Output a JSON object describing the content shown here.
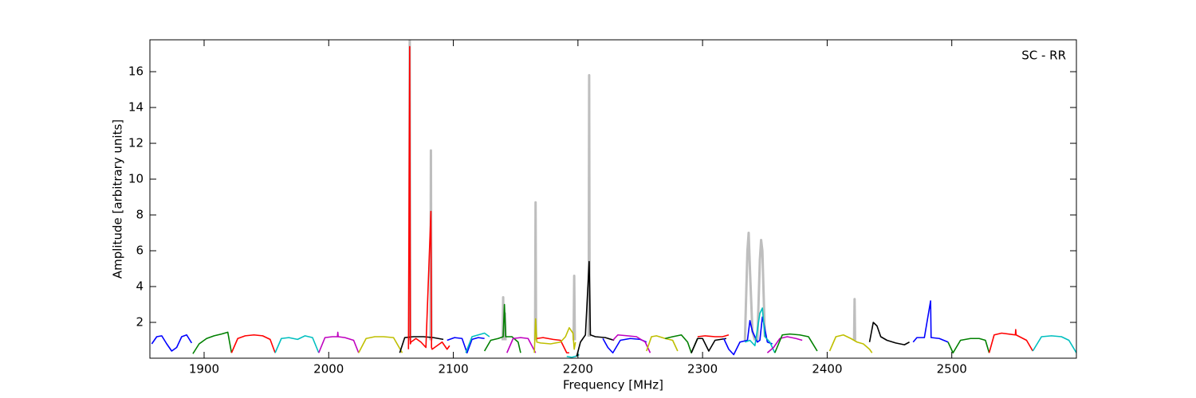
{
  "chart_data": {
    "type": "line",
    "annotation": "SC - RR",
    "xlabel": "Frequency [MHz]",
    "ylabel": "Amplitude [arbitrary units]",
    "xlim": [
      1856.5,
      2600
    ],
    "ylim": [
      0,
      17.78
    ],
    "xticks": [
      1900,
      2000,
      2100,
      2200,
      2300,
      2400,
      2500
    ],
    "yticks": [
      2,
      4,
      6,
      8,
      10,
      12,
      14,
      16
    ],
    "series": [
      {
        "color": "#bebebe",
        "x": [
          2064.6,
          2065,
          2065.4,
          2065.5,
          2081.6,
          2082,
          2082.4,
          2082.5,
          2139.6,
          2140,
          2140.4,
          2140.5,
          2141.1,
          2141.5,
          2141.9,
          2142,
          2165.6,
          2166,
          2166.4,
          2166.5,
          2196.5,
          2197,
          2197.5,
          2197.6,
          2208.6,
          2209,
          2209.4,
          2209.5,
          2334,
          2336,
          2337,
          2338,
          2340,
          2342,
          2343,
          2344,
          2346,
          2347,
          2348,
          2350,
          2351,
          2421.6,
          2422,
          2422.4
        ],
        "values": [
          1,
          17.8,
          1,
          null,
          1,
          11.6,
          1,
          null,
          1,
          3.4,
          1,
          null,
          1,
          2.5,
          1,
          null,
          1,
          8.7,
          1,
          null,
          1,
          4.6,
          1,
          null,
          1.2,
          15.8,
          1.2,
          null,
          1,
          6.0,
          7.0,
          5.0,
          1.5,
          1.0,
          null,
          1,
          5.5,
          6.6,
          6.0,
          1.2,
          null,
          1,
          3.3,
          1
        ]
      },
      {
        "color": "#0000ff",
        "x": [
          1858,
          1862,
          1866,
          1870,
          1874,
          1878,
          1882,
          1886,
          1890
        ],
        "values": [
          0.8,
          1.2,
          1.25,
          0.8,
          0.4,
          0.6,
          1.2,
          1.3,
          0.85
        ]
      },
      {
        "color": "#008000",
        "x": [
          1891,
          1896,
          1902,
          1908,
          1914,
          1919,
          1922
        ],
        "values": [
          0.25,
          0.8,
          1.1,
          1.25,
          1.35,
          1.45,
          0.3
        ]
      },
      {
        "color": "#ff0000",
        "x": [
          1922,
          1927,
          1933,
          1940,
          1947,
          1953,
          1957
        ],
        "values": [
          0.3,
          1.1,
          1.25,
          1.3,
          1.25,
          1.05,
          0.3
        ]
      },
      {
        "color": "#00bfbf",
        "x": [
          1957,
          1962,
          1968,
          1975,
          1981,
          1987,
          1992
        ],
        "values": [
          0.3,
          1.1,
          1.15,
          1.05,
          1.25,
          1.15,
          0.3
        ]
      },
      {
        "color": "#bf00bf",
        "x": [
          1992,
          1997,
          2003,
          2007,
          2007.3,
          2007.6,
          2013,
          2020,
          2024
        ],
        "values": [
          0.3,
          1.15,
          1.2,
          1.2,
          1.45,
          1.2,
          1.15,
          1.0,
          0.3
        ]
      },
      {
        "color": "#bfbf00",
        "x": [
          2024,
          2030,
          2037,
          2044,
          2052,
          2059
        ],
        "values": [
          0.3,
          1.1,
          1.2,
          1.2,
          1.15,
          0.3
        ]
      },
      {
        "color": "#000000",
        "x": [
          2057,
          2061,
          2068,
          2076,
          2084,
          2092
        ],
        "values": [
          0.3,
          1.15,
          1.2,
          1.2,
          1.15,
          1.05
        ]
      },
      {
        "color": "#ff0000",
        "x": [
          2064,
          2065,
          2065.5,
          2066,
          2070,
          2074,
          2078,
          2082,
          2082.5,
          2083,
          2087,
          2091,
          2095,
          2097
        ],
        "values": [
          0.5,
          17.4,
          0.8,
          0.9,
          1.1,
          0.9,
          0.6,
          8.2,
          0.6,
          0.5,
          0.7,
          0.9,
          0.5,
          0.7
        ]
      },
      {
        "color": "#0000ff",
        "x": [
          2095,
          2101,
          2107,
          2111,
          2115,
          2120,
          2125
        ],
        "values": [
          1.0,
          1.15,
          1.1,
          0.3,
          1.05,
          1.15,
          1.1
        ]
      },
      {
        "color": "#00bfbf",
        "x": [
          2110,
          2115,
          2120,
          2125,
          2129
        ],
        "values": [
          0.3,
          1.2,
          1.3,
          1.4,
          1.2
        ]
      },
      {
        "color": "#008000",
        "x": [
          2125,
          2130,
          2136,
          2140,
          2141,
          2142,
          2147,
          2152,
          2154
        ],
        "values": [
          0.4,
          1.0,
          1.1,
          1.2,
          3.0,
          1.2,
          1.2,
          0.9,
          0.3
        ]
      },
      {
        "color": "#bf00bf",
        "x": [
          2143,
          2148,
          2154,
          2160,
          2166
        ],
        "values": [
          0.3,
          1.1,
          1.15,
          1.1,
          0.3
        ]
      },
      {
        "color": "#bfbf00",
        "x": [
          2165,
          2166,
          2167,
          2170,
          2178,
          2186
        ],
        "values": [
          0.3,
          2.2,
          0.9,
          0.85,
          0.8,
          0.9
        ]
      },
      {
        "color": "#ff0000",
        "x": [
          2167,
          2172,
          2180,
          2186,
          2191,
          2193
        ],
        "values": [
          1.1,
          1.15,
          1.05,
          1.0,
          0.3,
          0.3
        ]
      },
      {
        "color": "#bfbf00",
        "x": [
          2186,
          2190,
          2193,
          2196,
          2197,
          2198
        ],
        "values": [
          0.9,
          1.2,
          1.7,
          1.4,
          0.5,
          0.9
        ]
      },
      {
        "color": "#00bfbf",
        "x": [
          2191,
          2195,
          2198,
          2201
        ],
        "values": [
          0.1,
          0.05,
          0.1,
          0.2
        ]
      },
      {
        "color": "#000000",
        "x": [
          2199,
          2202,
          2206,
          2209,
          2210,
          2214,
          2222,
          2229
        ],
        "values": [
          0.1,
          0.9,
          1.3,
          5.4,
          1.3,
          1.2,
          1.15,
          1.0
        ]
      },
      {
        "color": "#0000ff",
        "x": [
          2220,
          2224,
          2228,
          2234,
          2242,
          2250,
          2255
        ],
        "values": [
          1.1,
          0.6,
          0.3,
          1.0,
          1.1,
          1.05,
          0.9
        ]
      },
      {
        "color": "#bf00bf",
        "x": [
          2228,
          2232,
          2240,
          2247,
          2254,
          2258
        ],
        "values": [
          1.0,
          1.3,
          1.25,
          1.2,
          0.9,
          0.3
        ]
      },
      {
        "color": "#bfbf00",
        "x": [
          2255,
          2259,
          2263,
          2270,
          2276,
          2280
        ],
        "values": [
          0.4,
          1.2,
          1.25,
          1.1,
          1.0,
          0.4
        ]
      },
      {
        "color": "#008000",
        "x": [
          2270,
          2276,
          2283,
          2288,
          2291,
          2296
        ],
        "values": [
          1.1,
          1.2,
          1.3,
          0.9,
          0.3,
          1.1
        ]
      },
      {
        "color": "#000000",
        "x": [
          2291,
          2296,
          2300,
          2305,
          2310,
          2319
        ],
        "values": [
          0.3,
          1.1,
          1.1,
          0.4,
          1.0,
          1.1
        ]
      },
      {
        "color": "#ff0000",
        "x": [
          2296,
          2302,
          2310,
          2316,
          2321
        ],
        "values": [
          1.2,
          1.25,
          1.2,
          1.2,
          1.3
        ]
      },
      {
        "color": "#0000ff",
        "x": [
          2317,
          2321,
          2325,
          2330,
          2336,
          2338,
          2340,
          2344,
          2346,
          2348,
          2349,
          2352,
          2356
        ],
        "values": [
          1.1,
          0.5,
          0.2,
          0.9,
          1.0,
          2.1,
          1.5,
          0.9,
          1.0,
          2.3,
          2.0,
          0.9,
          0.8
        ]
      },
      {
        "color": "#00bfbf",
        "x": [
          2334,
          2338,
          2342,
          2346,
          2348,
          2350,
          2354,
          2358
        ],
        "values": [
          0.9,
          1.0,
          0.7,
          2.5,
          2.8,
          1.2,
          0.9,
          0.3
        ]
      },
      {
        "color": "#bf00bf",
        "x": [
          2352,
          2357,
          2362,
          2368,
          2375,
          2380
        ],
        "values": [
          0.3,
          0.6,
          1.1,
          1.2,
          1.1,
          1.0
        ]
      },
      {
        "color": "#008000",
        "x": [
          2358,
          2364,
          2370,
          2378,
          2385,
          2392
        ],
        "values": [
          0.3,
          1.3,
          1.35,
          1.3,
          1.2,
          0.4
        ]
      },
      {
        "color": "#bfbf00",
        "x": [
          2402,
          2407,
          2413,
          2419,
          2424,
          2429,
          2434,
          2436
        ],
        "values": [
          0.4,
          1.2,
          1.3,
          1.1,
          0.9,
          0.8,
          0.5,
          0.3
        ]
      },
      {
        "color": "#000000",
        "x": [
          2434,
          2437,
          2440,
          2443,
          2448,
          2455,
          2462,
          2466
        ],
        "values": [
          0.9,
          2.0,
          1.8,
          1.2,
          1.0,
          0.85,
          0.75,
          0.9
        ]
      },
      {
        "color": "#0000ff",
        "x": [
          2469,
          2472,
          2478,
          2483,
          2483.4,
          2483.8,
          2490,
          2497
        ],
        "values": [
          0.9,
          1.15,
          1.15,
          3.2,
          1.15,
          1.15,
          1.1,
          0.9
        ]
      },
      {
        "color": "#008000",
        "x": [
          2497,
          2501,
          2507,
          2515,
          2522,
          2527,
          2530
        ],
        "values": [
          0.9,
          0.3,
          1.0,
          1.1,
          1.1,
          1.0,
          0.3
        ]
      },
      {
        "color": "#ff0000",
        "x": [
          2530,
          2534,
          2540,
          2551,
          2551.3,
          2551.6,
          2560,
          2565
        ],
        "values": [
          0.3,
          1.3,
          1.4,
          1.3,
          1.6,
          1.3,
          1.0,
          0.4
        ]
      },
      {
        "color": "#00bfbf",
        "x": [
          2565,
          2572,
          2580,
          2588,
          2594,
          2600
        ],
        "values": [
          0.4,
          1.2,
          1.25,
          1.2,
          1.0,
          0.3
        ]
      }
    ]
  }
}
